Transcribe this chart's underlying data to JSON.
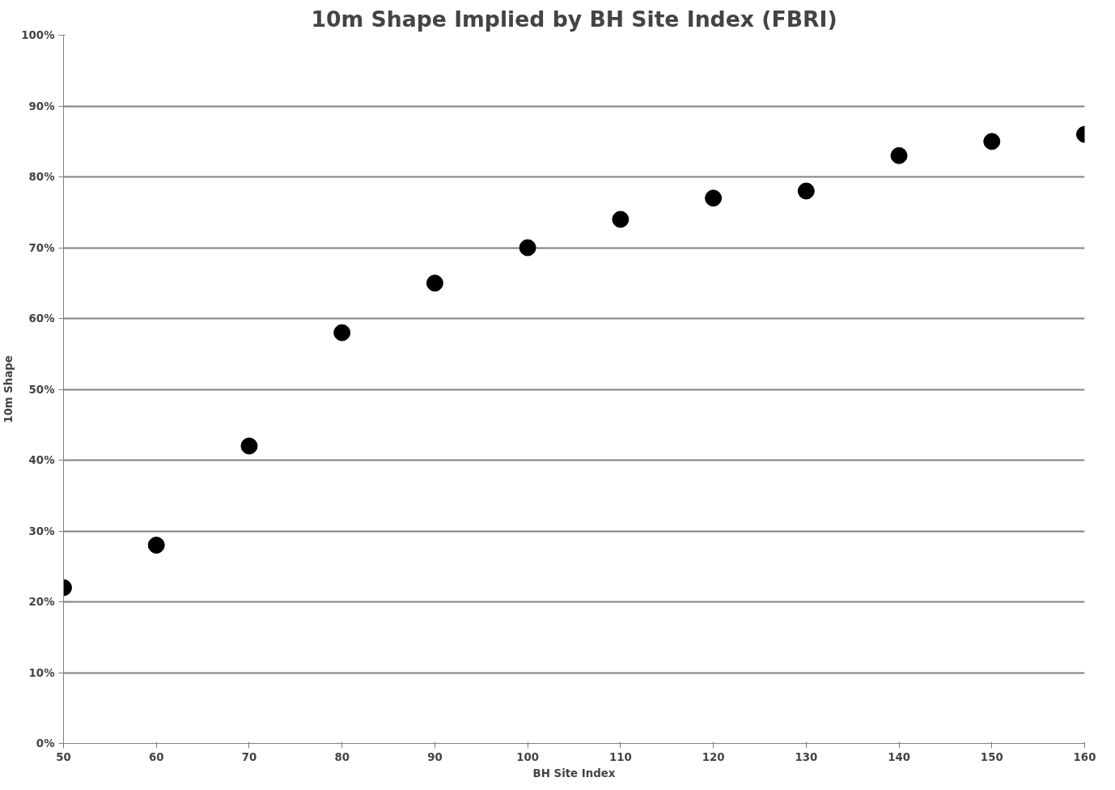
{
  "chart_data": {
    "type": "scatter",
    "title": "10m Shape Implied by BH Site Index (FBRI)",
    "xlabel": "BH Site Index",
    "ylabel": "10m Shape",
    "x": [
      50,
      60,
      70,
      80,
      90,
      100,
      110,
      120,
      130,
      140,
      150,
      160
    ],
    "series": [
      {
        "color": "#000000",
        "values": [
          22,
          28,
          42,
          58,
          65,
          70,
          74,
          77,
          78,
          83,
          85,
          86
        ]
      }
    ],
    "xlim": [
      50,
      160
    ],
    "xticks": [
      50,
      60,
      70,
      80,
      90,
      100,
      110,
      120,
      130,
      140,
      150,
      160
    ],
    "ylim": [
      0,
      100
    ],
    "yticks": [
      {
        "value": 0,
        "label": "0%"
      },
      {
        "value": 10,
        "label": "10%"
      },
      {
        "value": 20,
        "label": "20%"
      },
      {
        "value": 30,
        "label": "30%"
      },
      {
        "value": 40,
        "label": "40%"
      },
      {
        "value": 50,
        "label": "50%"
      },
      {
        "value": 60,
        "label": "60%"
      },
      {
        "value": 70,
        "label": "70%"
      },
      {
        "value": 80,
        "label": "80%"
      },
      {
        "value": 90,
        "label": "90%"
      },
      {
        "value": 100,
        "label": "100%"
      }
    ],
    "grid": "y",
    "marker": "circle"
  }
}
